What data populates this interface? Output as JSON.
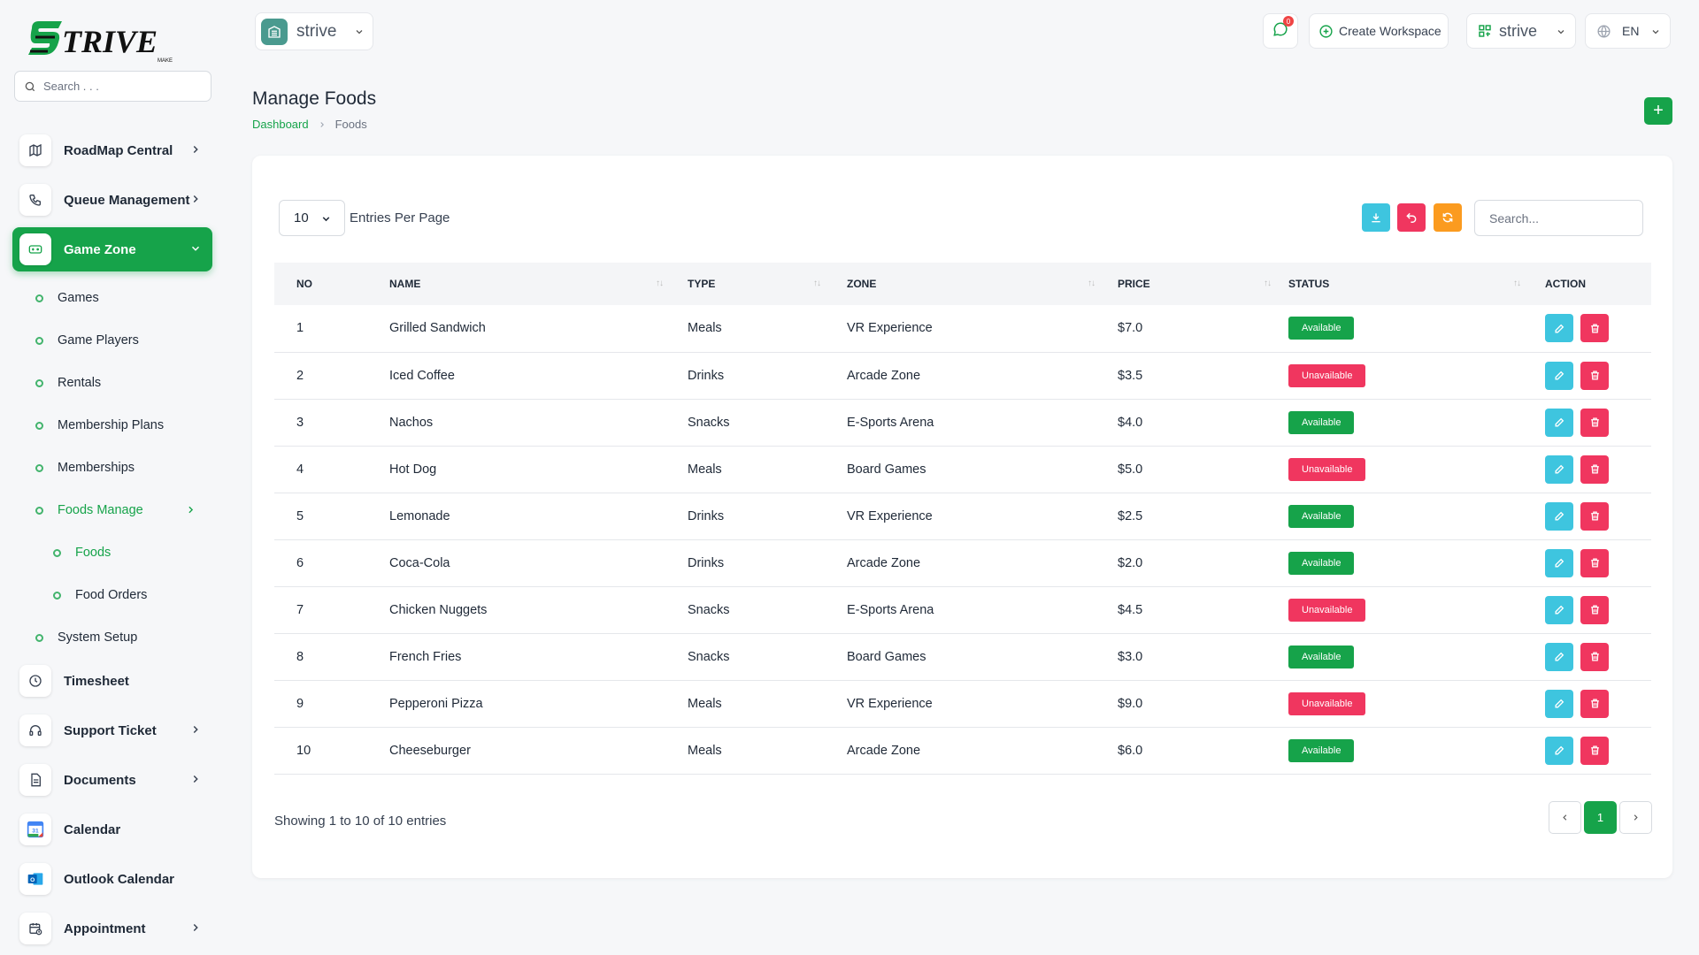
{
  "brand": {
    "name": "STRIVE",
    "tagline": "MAKE"
  },
  "sidebar": {
    "search_placeholder": "Search . . .",
    "items": [
      {
        "label": "RoadMap Central",
        "icon": "map-icon",
        "chevron": true
      },
      {
        "label": "Queue Management",
        "icon": "phone-icon",
        "chevron": true
      },
      {
        "label": "Game Zone",
        "icon": "gamepad-icon",
        "chevron": true,
        "active": true
      }
    ],
    "game_zone_children": [
      {
        "label": "Games"
      },
      {
        "label": "Game Players"
      },
      {
        "label": "Rentals"
      },
      {
        "label": "Membership Plans"
      },
      {
        "label": "Memberships"
      },
      {
        "label": "Foods Manage",
        "open": true
      }
    ],
    "foods_children": [
      {
        "label": "Foods",
        "active": true
      },
      {
        "label": "Food Orders"
      }
    ],
    "system_setup": "System Setup",
    "bottom_items": [
      {
        "label": "Timesheet",
        "icon": "clock-icon",
        "chevron": false
      },
      {
        "label": "Support Ticket",
        "icon": "headset-icon",
        "chevron": true
      },
      {
        "label": "Documents",
        "icon": "document-icon",
        "chevron": true
      },
      {
        "label": "Calendar",
        "icon": "google-calendar-icon",
        "chevron": false
      },
      {
        "label": "Outlook Calendar",
        "icon": "outlook-icon",
        "chevron": false
      },
      {
        "label": "Appointment",
        "icon": "calendar-clock-icon",
        "chevron": true
      }
    ]
  },
  "topbar": {
    "workspace": "strive",
    "messages_count": "0",
    "create_workspace": "Create Workspace",
    "workspace_switch": "strive",
    "language": "EN"
  },
  "page": {
    "title": "Manage Foods",
    "breadcrumb": [
      "Dashboard",
      "Foods"
    ]
  },
  "table": {
    "entries_per_page": "10",
    "entries_label": "Entries Per Page",
    "search_placeholder": "Search...",
    "columns": [
      "NO",
      "NAME",
      "TYPE",
      "ZONE",
      "PRICE",
      "STATUS",
      "ACTION"
    ],
    "rows": [
      {
        "no": "1",
        "name": "Grilled Sandwich",
        "type": "Meals",
        "zone": "VR Experience",
        "price": "$7.0",
        "status": "Available"
      },
      {
        "no": "2",
        "name": "Iced Coffee",
        "type": "Drinks",
        "zone": "Arcade Zone",
        "price": "$3.5",
        "status": "Unavailable"
      },
      {
        "no": "3",
        "name": "Nachos",
        "type": "Snacks",
        "zone": "E-Sports Arena",
        "price": "$4.0",
        "status": "Available"
      },
      {
        "no": "4",
        "name": "Hot Dog",
        "type": "Meals",
        "zone": "Board Games",
        "price": "$5.0",
        "status": "Unavailable"
      },
      {
        "no": "5",
        "name": "Lemonade",
        "type": "Drinks",
        "zone": "VR Experience",
        "price": "$2.5",
        "status": "Available"
      },
      {
        "no": "6",
        "name": "Coca-Cola",
        "type": "Drinks",
        "zone": "Arcade Zone",
        "price": "$2.0",
        "status": "Available"
      },
      {
        "no": "7",
        "name": "Chicken Nuggets",
        "type": "Snacks",
        "zone": "E-Sports Arena",
        "price": "$4.5",
        "status": "Unavailable"
      },
      {
        "no": "8",
        "name": "French Fries",
        "type": "Snacks",
        "zone": "Board Games",
        "price": "$3.0",
        "status": "Available"
      },
      {
        "no": "9",
        "name": "Pepperoni Pizza",
        "type": "Meals",
        "zone": "VR Experience",
        "price": "$9.0",
        "status": "Unavailable"
      },
      {
        "no": "10",
        "name": "Cheeseburger",
        "type": "Meals",
        "zone": "Arcade Zone",
        "price": "$6.0",
        "status": "Available"
      }
    ],
    "showing": "Showing 1 to 10 of 10 entries",
    "current_page": "1"
  },
  "colors": {
    "primary": "#16a34a",
    "info": "#3ec5df",
    "danger": "#f0365f",
    "warning": "#fb9b1f"
  }
}
